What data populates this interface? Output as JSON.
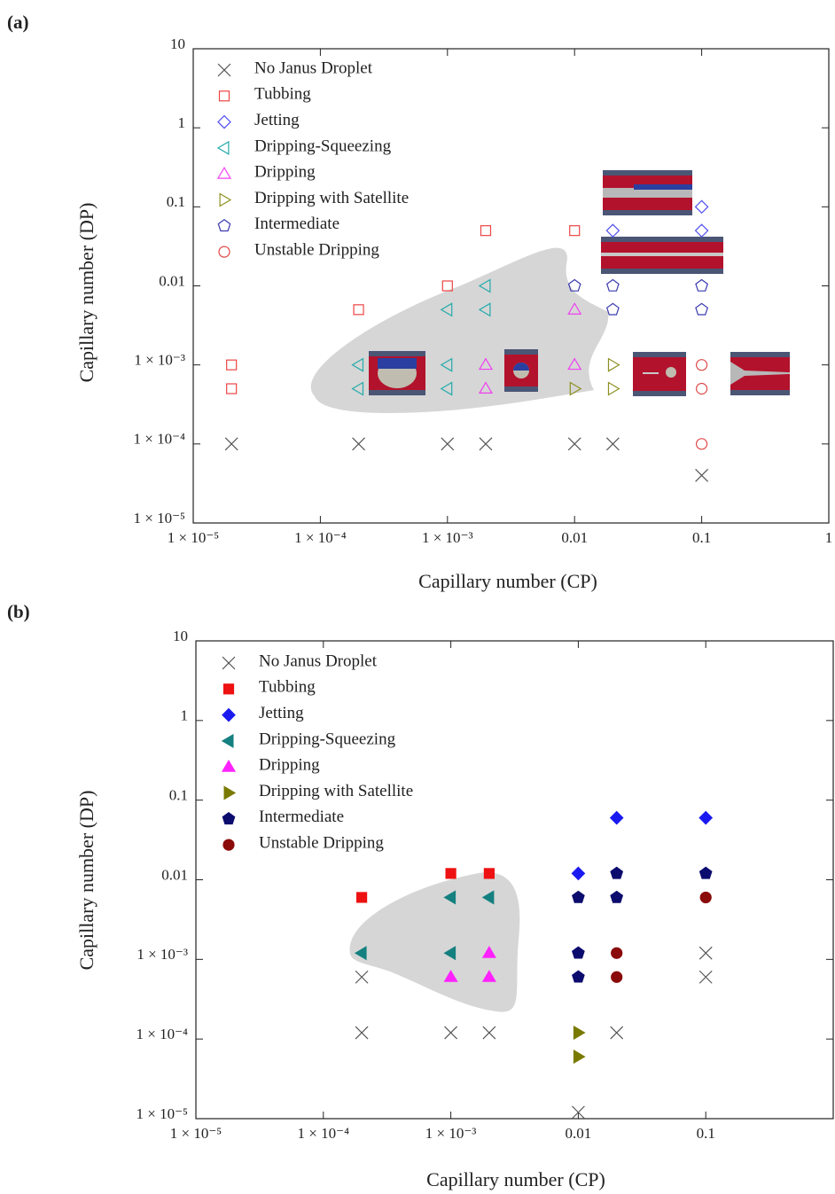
{
  "chart_data": [
    {
      "type": "scatter",
      "label": "(a)",
      "x_label": "Capillary number (CP)",
      "y_label": "Capillary number (DP)",
      "xscale": "log",
      "yscale": "log",
      "filled": false,
      "legend": "upper left",
      "xlim": [
        1e-05,
        1
      ],
      "ylim": [
        1e-05,
        10
      ],
      "xticks": [
        {
          "value": 1e-05,
          "label": "1 × 10⁻⁵"
        },
        {
          "value": 0.0001,
          "label": "1 × 10⁻⁴"
        },
        {
          "value": 0.001,
          "label": "1 × 10⁻³"
        },
        0.01,
        0.1,
        1
      ],
      "yticks": [
        {
          "value": 1e-05,
          "label": "1 × 10⁻⁵"
        },
        {
          "value": 0.0001,
          "label": "1 × 10⁻⁴"
        },
        {
          "value": 0.001,
          "label": "1 × 10⁻³"
        },
        0.01,
        0.1,
        1,
        10
      ],
      "series": [
        {
          "name": "No Janus Droplet",
          "marker": "x",
          "color": "#555555",
          "x": [
            2e-05,
            0.0002,
            0.001,
            0.002,
            0.01,
            0.02,
            0.1
          ],
          "y": [
            0.0001,
            0.0001,
            0.0001,
            0.0001,
            0.0001,
            0.0001,
            4e-05
          ]
        },
        {
          "name": "Tubbing",
          "marker": "square",
          "color": "#ee4444",
          "x": [
            2e-05,
            2e-05,
            0.0002,
            0.001,
            0.002,
            0.01
          ],
          "y": [
            0.001,
            0.0005,
            0.005,
            0.01,
            0.05,
            0.05
          ]
        },
        {
          "name": "Jetting",
          "marker": "diamond",
          "color": "#5050f0",
          "x": [
            0.02,
            0.1,
            0.1
          ],
          "y": [
            0.05,
            0.05,
            0.1
          ]
        },
        {
          "name": "Dripping-Squeezing",
          "marker": "triangle-left",
          "color": "#22aaaa",
          "x": [
            0.0002,
            0.0002,
            0.001,
            0.001,
            0.001,
            0.002,
            0.002
          ],
          "y": [
            0.001,
            0.0005,
            0.001,
            0.0005,
            0.005,
            0.005,
            0.01
          ]
        },
        {
          "name": "Dripping",
          "marker": "triangle-up",
          "color": "#f040f0",
          "x": [
            0.002,
            0.002,
            0.01,
            0.01
          ],
          "y": [
            0.001,
            0.0005,
            0.001,
            0.005
          ]
        },
        {
          "name": "Dripping with Satellite",
          "marker": "triangle-right",
          "color": "#8c9020",
          "x": [
            0.01,
            0.02,
            0.02
          ],
          "y": [
            0.0005,
            0.001,
            0.0005
          ]
        },
        {
          "name": "Intermediate",
          "marker": "pentagon",
          "color": "#3a3ab0",
          "x": [
            0.01,
            0.02,
            0.02,
            0.1,
            0.1
          ],
          "y": [
            0.01,
            0.01,
            0.005,
            0.01,
            0.005
          ]
        },
        {
          "name": "Unstable Dripping",
          "marker": "circle",
          "color": "#e04848",
          "x": [
            0.1,
            0.1,
            0.1
          ],
          "y": [
            0.001,
            0.0005,
            0.0001
          ]
        }
      ]
    },
    {
      "type": "scatter",
      "label": "(b)",
      "x_label": "Capillary number (CP)",
      "y_label": "Capillary number (DP)",
      "xscale": "log",
      "yscale": "log",
      "filled": true,
      "legend": "upper left",
      "xlim": [
        1e-05,
        1
      ],
      "ylim": [
        1e-05,
        10
      ],
      "xticks": [
        {
          "value": 1e-05,
          "label": "1 × 10⁻⁵"
        },
        {
          "value": 0.0001,
          "label": "1 × 10⁻⁴"
        },
        {
          "value": 0.001,
          "label": "1 × 10⁻³"
        },
        0.01,
        0.1
      ],
      "yticks": [
        {
          "value": 1e-05,
          "label": "1 × 10⁻⁵"
        },
        {
          "value": 0.0001,
          "label": "1 × 10⁻⁴"
        },
        {
          "value": 0.001,
          "label": "1 × 10⁻³"
        },
        0.01,
        0.1,
        1,
        10
      ],
      "series": [
        {
          "name": "No Janus Droplet",
          "marker": "x",
          "color": "#555555",
          "x": [
            0.0002,
            0.0002,
            0.001,
            0.002,
            0.02,
            0.01,
            0.1,
            0.1
          ],
          "y": [
            0.0006,
            0.00012,
            0.00012,
            0.00012,
            0.00012,
            1.2e-05,
            0.0012,
            0.0006
          ]
        },
        {
          "name": "Tubbing",
          "marker": "square",
          "color": "#ee1111",
          "x": [
            0.0002,
            0.001,
            0.002
          ],
          "y": [
            0.006,
            0.012,
            0.012
          ]
        },
        {
          "name": "Jetting",
          "marker": "diamond",
          "color": "#1a1af0",
          "x": [
            0.01,
            0.02,
            0.1
          ],
          "y": [
            0.012,
            0.06,
            0.06
          ]
        },
        {
          "name": "Dripping-Squeezing",
          "marker": "triangle-left",
          "color": "#158080",
          "x": [
            0.0002,
            0.001,
            0.002,
            0.001
          ],
          "y": [
            0.0012,
            0.006,
            0.006,
            0.0012
          ]
        },
        {
          "name": "Dripping",
          "marker": "triangle-up",
          "color": "#ff22ff",
          "x": [
            0.001,
            0.002,
            0.002
          ],
          "y": [
            0.0006,
            0.0012,
            0.0006
          ]
        },
        {
          "name": "Dripping with Satellite",
          "marker": "triangle-right",
          "color": "#7a7a00",
          "x": [
            0.01,
            0.01
          ],
          "y": [
            0.00012,
            6e-05
          ]
        },
        {
          "name": "Intermediate",
          "marker": "pentagon",
          "color": "#0c0c6e",
          "x": [
            0.01,
            0.02,
            0.02,
            0.1,
            0.01,
            0.01
          ],
          "y": [
            0.006,
            0.012,
            0.006,
            0.012,
            0.0012,
            0.0006
          ]
        },
        {
          "name": "Unstable Dripping",
          "marker": "circle",
          "color": "#8b0a0a",
          "x": [
            0.1,
            0.02,
            0.02
          ],
          "y": [
            0.006,
            0.0012,
            0.0006
          ]
        }
      ]
    }
  ]
}
